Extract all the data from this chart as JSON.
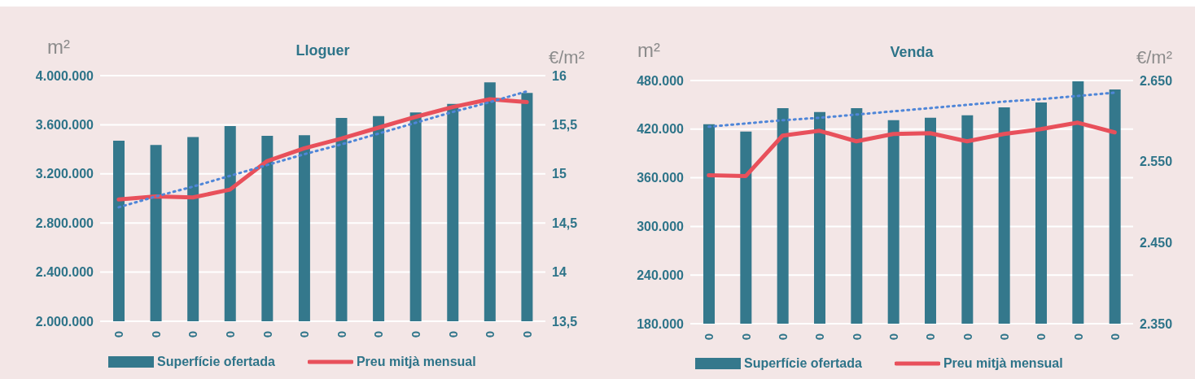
{
  "chart_data": [
    {
      "type": "bar",
      "title": "Lloguer",
      "ylabel": "m²",
      "y2label": "€/m²",
      "categories": [
        "0",
        "0",
        "0",
        "0",
        "0",
        "0",
        "0",
        "0",
        "0",
        "0",
        "0",
        "0"
      ],
      "series": [
        {
          "name": "Superfície ofertada",
          "color": "#34788c",
          "values": [
            3470000,
            3435000,
            3500000,
            3590000,
            3510000,
            3515000,
            3655000,
            3670000,
            3700000,
            3770000,
            3945000,
            3860000
          ]
        },
        {
          "name": "Preu mitjà mensual",
          "type": "line",
          "axis": "y2",
          "color": "#e8505b",
          "values": [
            14.74,
            14.77,
            14.76,
            14.84,
            15.13,
            15.26,
            15.36,
            15.47,
            15.58,
            15.68,
            15.76,
            15.73
          ]
        },
        {
          "type": "line",
          "axis": "y2",
          "color": "#4f86d8",
          "line_style": "dotted",
          "values": [
            14.66,
            14.77,
            14.87,
            14.98,
            15.09,
            15.2,
            15.3,
            15.41,
            15.52,
            15.63,
            15.73,
            15.84
          ]
        }
      ],
      "ylim": [
        2000000,
        4000000
      ],
      "yticks": [
        {
          "value": 2000000,
          "label": "2.000.000"
        },
        {
          "value": 2400000,
          "label": "2.400.000"
        },
        {
          "value": 2800000,
          "label": "2.800.000"
        },
        {
          "value": 3200000,
          "label": "3.200.000"
        },
        {
          "value": 3600000,
          "label": "3.600.000"
        },
        {
          "value": 4000000,
          "label": "4.000.000"
        }
      ],
      "y2lim": [
        13.5,
        16
      ],
      "y2ticks": [
        {
          "value": 13.5,
          "label": "13,5"
        },
        14,
        {
          "value": 14.5,
          "label": "14,5"
        },
        15,
        {
          "value": 15.5,
          "label": "15,5"
        },
        16
      ],
      "grid": "y",
      "legend": "bottom",
      "marker": "none"
    },
    {
      "type": "bar",
      "title": "Venda",
      "ylabel": "m²",
      "y2label": "€/m²",
      "categories": [
        "0",
        "0",
        "0",
        "0",
        "0",
        "0",
        "0",
        "0",
        "0",
        "0",
        "0",
        "0"
      ],
      "series": [
        {
          "name": "Superfície ofertada",
          "color": "#34788c",
          "values": [
            426000,
            417000,
            446000,
            441000,
            446000,
            431000,
            434000,
            437000,
            447000,
            453000,
            479000,
            469000
          ]
        },
        {
          "name": "Preu mitjà mensual",
          "type": "line",
          "axis": "y2",
          "color": "#e8505b",
          "values": [
            2533,
            2532,
            2582,
            2588,
            2575,
            2584,
            2585,
            2575,
            2584,
            2590,
            2598,
            2586
          ]
        },
        {
          "type": "line",
          "axis": "y2",
          "color": "#4f86d8",
          "line_style": "dotted",
          "values": [
            2593,
            2597,
            2601,
            2604,
            2608,
            2612,
            2616,
            2620,
            2624,
            2627,
            2631,
            2635
          ]
        }
      ],
      "ylim": [
        180000,
        480000
      ],
      "yticks": [
        {
          "value": 180000,
          "label": "180.000"
        },
        {
          "value": 240000,
          "label": "240.000"
        },
        {
          "value": 300000,
          "label": "300.000"
        },
        {
          "value": 360000,
          "label": "360.000"
        },
        {
          "value": 420000,
          "label": "420.000"
        },
        {
          "value": 480000,
          "label": "480.000"
        }
      ],
      "y2lim": [
        2350,
        2650
      ],
      "y2ticks": [
        {
          "value": 2350,
          "label": "2.350"
        },
        {
          "value": 2450,
          "label": "2.450"
        },
        {
          "value": 2550,
          "label": "2.550"
        },
        {
          "value": 2650,
          "label": "2.650"
        }
      ],
      "grid": "y",
      "legend": "bottom",
      "marker": "none"
    }
  ]
}
